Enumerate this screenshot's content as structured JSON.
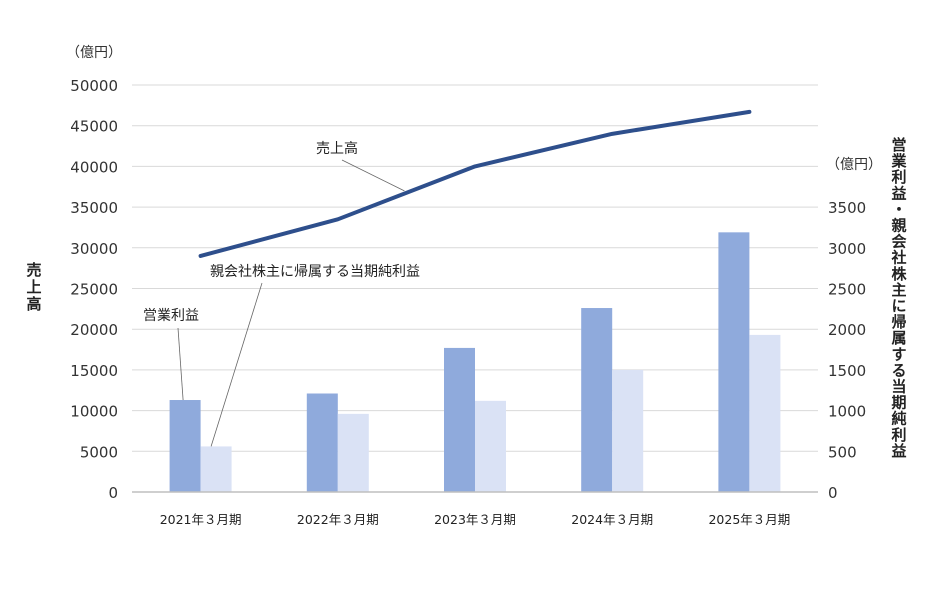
{
  "chart_data": {
    "type": "bar+line",
    "categories": [
      "2021年３月期",
      "2022年３月期",
      "2023年３月期",
      "2024年３月期",
      "2025年３月期"
    ],
    "left_axis": {
      "unit": "（億円）",
      "title": "売上高",
      "ylim": [
        0,
        50000
      ],
      "ticks": [
        "0",
        "5000",
        "10000",
        "15000",
        "20000",
        "25000",
        "30000",
        "35000",
        "40000",
        "45000",
        "50000"
      ]
    },
    "right_axis": {
      "unit": "（億円）",
      "title": "営業利益・親会社株主に帰属する当期純利益",
      "ylim": [
        0,
        5000
      ],
      "ticks": [
        "0",
        "500",
        "1000",
        "1500",
        "2000",
        "2500",
        "3000",
        "3500"
      ]
    },
    "series": [
      {
        "name": "売上高",
        "type": "line",
        "axis": "left",
        "color": "#2e4f8c",
        "values": [
          29000,
          33500,
          40000,
          44000,
          46700
        ]
      },
      {
        "name": "営業利益",
        "type": "bar",
        "axis": "right",
        "color": "#8faadc",
        "values": [
          1130,
          1210,
          1770,
          2260,
          3190
        ]
      },
      {
        "name": "親会社株主に帰属する当期純利益",
        "type": "bar",
        "axis": "right",
        "color": "#dae2f5",
        "values": [
          560,
          960,
          1120,
          1500,
          1930
        ]
      }
    ],
    "grid": true,
    "legend": "callouts"
  }
}
